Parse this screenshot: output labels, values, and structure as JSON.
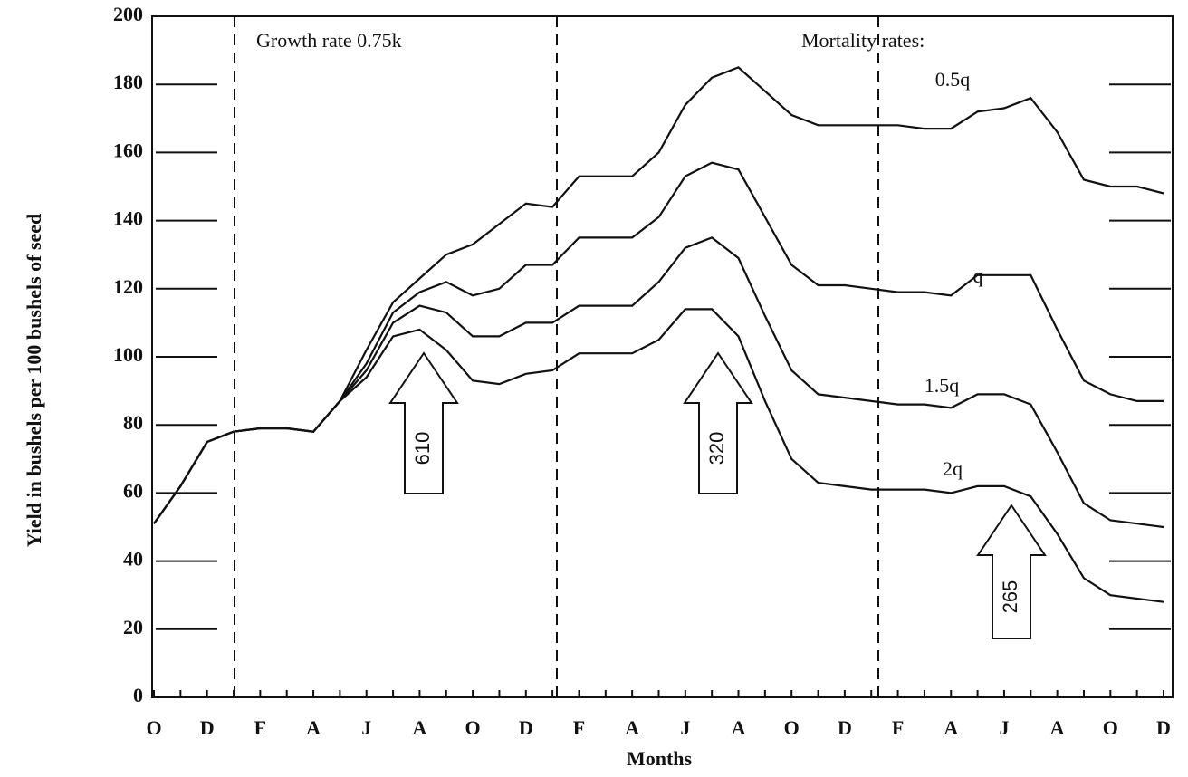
{
  "chart_data": {
    "type": "line",
    "xlabel": "Months",
    "ylabel": "Yield in bushels per 100 bushels of seed",
    "annotations": [
      "Growth rate 0.75k",
      "Mortality rates:",
      "610",
      "320",
      "265"
    ],
    "categories": [
      "O",
      null,
      "D",
      null,
      "F",
      null,
      "A",
      null,
      "J",
      null,
      "A",
      null,
      "O",
      null,
      "D",
      null,
      "F",
      null,
      "A",
      null,
      "J",
      null,
      "A",
      null,
      "O",
      null,
      "D",
      null,
      "F",
      null,
      "A",
      null,
      "J",
      null,
      "A",
      null,
      "O",
      null,
      "D"
    ],
    "series": [
      {
        "name": "0.5q",
        "color": "#111111",
        "values": [
          51,
          62,
          75,
          78,
          79,
          79,
          78,
          87,
          102,
          116,
          123,
          130,
          133,
          139,
          145,
          144,
          153,
          153,
          153,
          160,
          174,
          182,
          185,
          178,
          171,
          168,
          168,
          168,
          168,
          167,
          167,
          172,
          173,
          176,
          166,
          152,
          150,
          150,
          148
        ]
      },
      {
        "name": "q",
        "color": "#111111",
        "values": [
          51,
          62,
          75,
          78,
          79,
          79,
          78,
          87,
          98,
          113,
          119,
          122,
          118,
          120,
          127,
          127,
          135,
          135,
          135,
          141,
          153,
          157,
          155,
          141,
          127,
          121,
          121,
          120,
          119,
          119,
          118,
          124,
          124,
          124,
          108,
          93,
          89,
          87,
          87
        ]
      },
      {
        "name": "1.5q",
        "color": "#111111",
        "values": [
          51,
          62,
          75,
          78,
          79,
          79,
          78,
          87,
          96,
          110,
          115,
          113,
          106,
          106,
          110,
          110,
          115,
          115,
          115,
          122,
          132,
          135,
          129,
          112,
          96,
          89,
          88,
          87,
          86,
          86,
          85,
          89,
          89,
          86,
          72,
          57,
          52,
          51,
          50
        ]
      },
      {
        "name": "2q",
        "color": "#111111",
        "values": [
          51,
          62,
          75,
          78,
          79,
          79,
          78,
          87,
          94,
          106,
          108,
          102,
          93,
          92,
          95,
          96,
          101,
          101,
          101,
          105,
          114,
          114,
          106,
          87,
          70,
          63,
          62,
          61,
          61,
          61,
          60,
          62,
          62,
          59,
          48,
          35,
          30,
          29,
          28
        ]
      }
    ],
    "ylim": [
      0,
      200
    ],
    "yticks": [
      0,
      20,
      40,
      60,
      80,
      100,
      120,
      140,
      160,
      180,
      200
    ],
    "grid": true
  }
}
